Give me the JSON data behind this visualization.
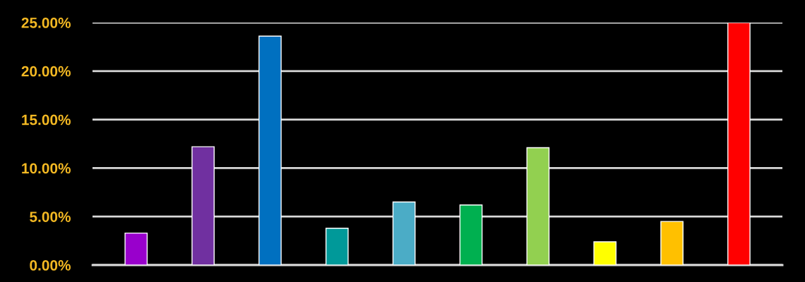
{
  "chart_data": {
    "type": "bar",
    "categories": [
      null,
      null,
      null,
      null,
      null,
      null,
      null,
      null,
      null,
      null
    ],
    "values": [
      3.3,
      12.2,
      23.6,
      3.8,
      6.5,
      6.2,
      12.1,
      2.4,
      4.5,
      25.0
    ],
    "colors": [
      "#9900cc",
      "#7030a0",
      "#0070c0",
      "#009999",
      "#4bacc6",
      "#00b050",
      "#92d050",
      "#ffff00",
      "#ffc000",
      "#ff0000"
    ],
    "ylim": [
      0,
      25
    ],
    "yticks": [
      {
        "value": 0,
        "label": "0.00%"
      },
      {
        "value": 5,
        "label": "5.00%"
      },
      {
        "value": 10,
        "label": "10.00%"
      },
      {
        "value": 15,
        "label": "15.00%"
      },
      {
        "value": 20,
        "label": "20.00%"
      },
      {
        "value": 25,
        "label": "25.00%"
      }
    ],
    "grid": "y"
  }
}
